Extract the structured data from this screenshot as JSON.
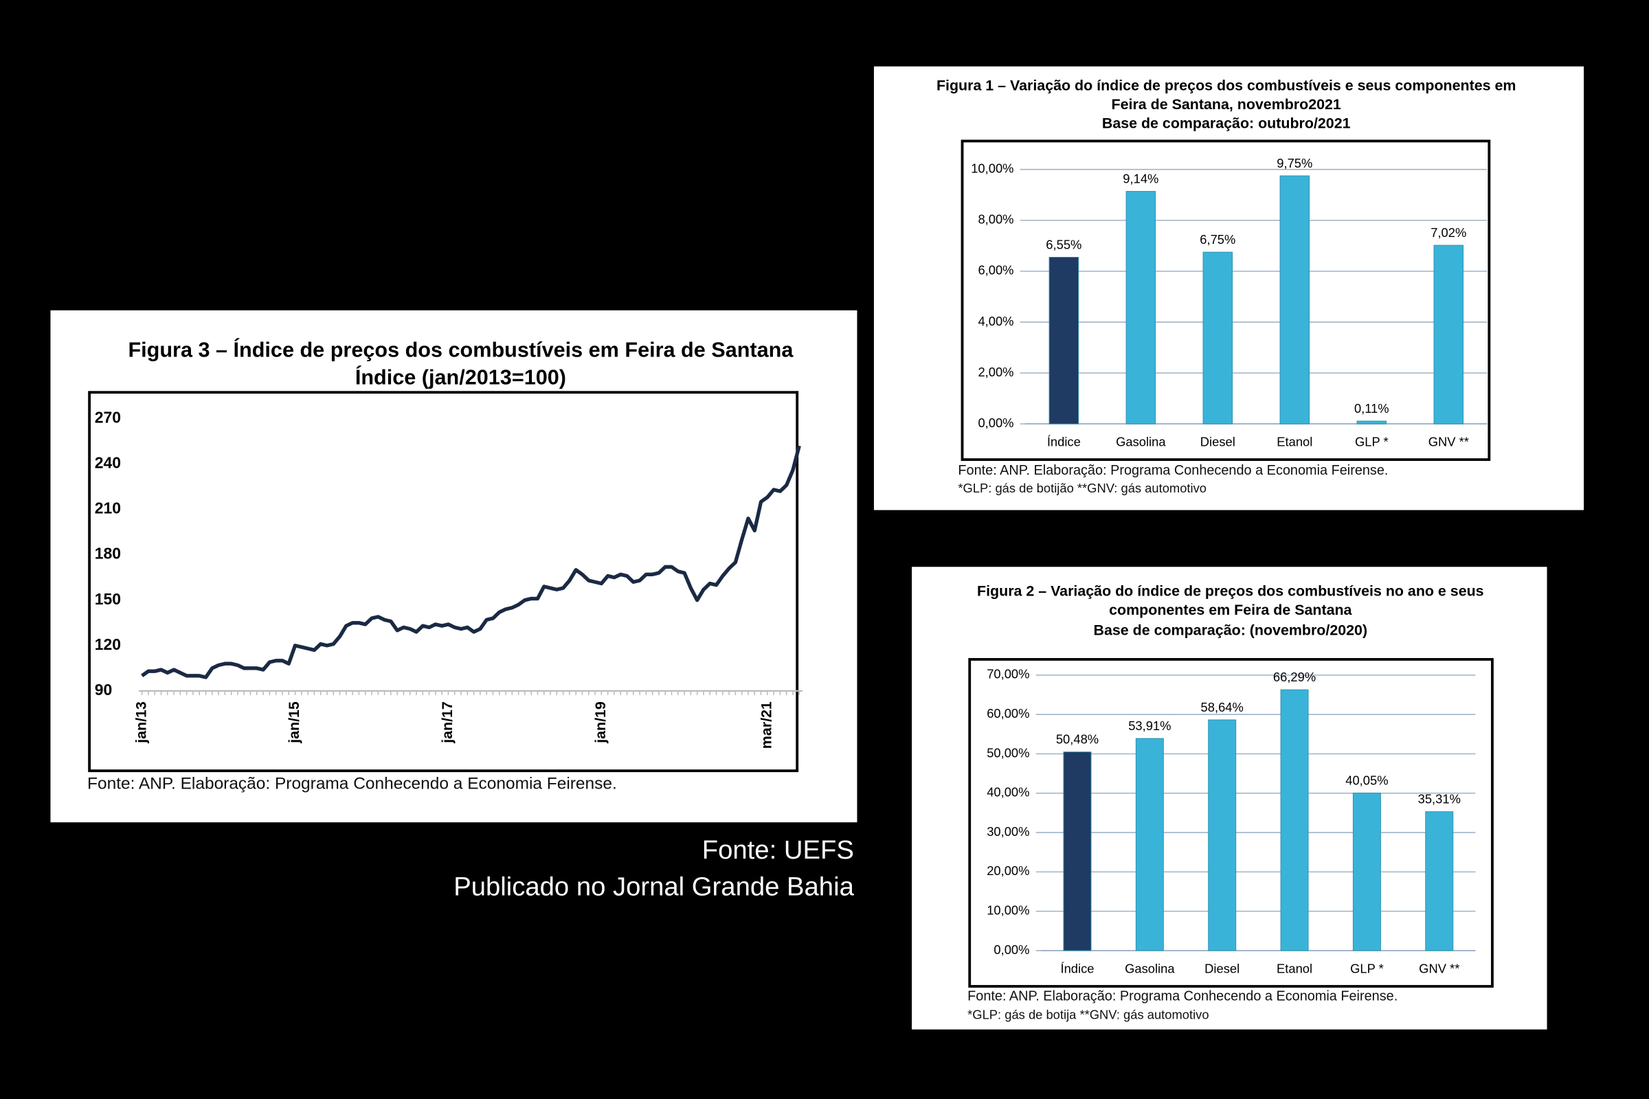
{
  "chart_data": [
    {
      "type": "line",
      "title": [
        "Figura 3 – Índice de preços dos combustíveis em Feira de Santana",
        "Índice (jan/2013=100)"
      ],
      "source": [
        "Fonte: ANP. Elaboração: Programa Conhecendo a Economia Feirense."
      ],
      "categories": [
        "jan/13",
        null,
        null,
        null,
        null,
        null,
        null,
        null,
        null,
        null,
        null,
        null,
        null,
        null,
        null,
        null,
        null,
        null,
        null,
        null,
        null,
        null,
        null,
        null,
        "jan/15",
        null,
        null,
        null,
        null,
        null,
        null,
        null,
        null,
        null,
        null,
        null,
        null,
        null,
        null,
        null,
        null,
        null,
        null,
        null,
        null,
        null,
        null,
        null,
        "jan/17",
        null,
        null,
        null,
        null,
        null,
        null,
        null,
        null,
        null,
        null,
        null,
        null,
        null,
        null,
        null,
        null,
        null,
        null,
        null,
        null,
        null,
        null,
        null,
        "jan/19",
        null,
        null,
        null,
        null,
        null,
        null,
        null,
        null,
        null,
        null,
        null,
        null,
        null,
        null,
        null,
        null,
        null,
        null,
        null,
        null,
        null,
        null,
        null,
        null,
        null,
        "mar/21",
        null,
        null,
        null,
        null,
        null
      ],
      "values": [
        100,
        103,
        103,
        104,
        102,
        104,
        102,
        100,
        100,
        100,
        99,
        105,
        107,
        108,
        108,
        107,
        105,
        105,
        105,
        104,
        109,
        110,
        110,
        108,
        120,
        119,
        118,
        117,
        121,
        120,
        121,
        126,
        133,
        135,
        135,
        134,
        138,
        139,
        137,
        136,
        130,
        132,
        131,
        129,
        133,
        132,
        134,
        133,
        134,
        132,
        131,
        132,
        129,
        131,
        137,
        138,
        142,
        144,
        145,
        147,
        150,
        151,
        151,
        159,
        158,
        157,
        158,
        163,
        170,
        167,
        163,
        162,
        161,
        166,
        165,
        167,
        166,
        162,
        163,
        167,
        167,
        168,
        172,
        172,
        169,
        168,
        158,
        150,
        157,
        161,
        160,
        166,
        171,
        175,
        190,
        204,
        196,
        215,
        218,
        223,
        222,
        226,
        236,
        252
      ],
      "color": "#1b2a44",
      "ylim": [
        90,
        270
      ],
      "yticks": [
        90,
        120,
        150,
        180,
        210,
        240,
        270
      ]
    },
    {
      "type": "bar",
      "title": [
        "Figura 1 – Variação do índice de preços dos combustíveis e seus componentes em",
        "Feira de Santana, novembro2021",
        "Base de comparação: outubro/2021"
      ],
      "source": [
        "Fonte: ANP. Elaboração: Programa Conhecendo a Economia Feirense.",
        "*GLP: gás de botijão **GNV: gás automotivo"
      ],
      "categories": [
        "Índice",
        "Gasolina",
        "Diesel",
        "Etanol",
        "GLP *",
        "GNV **"
      ],
      "values": [
        6.55,
        9.14,
        6.75,
        9.75,
        0.11,
        7.02
      ],
      "value_labels": [
        "6,55%",
        "9,14%",
        "6,75%",
        "9,75%",
        "0,11%",
        "7,02%"
      ],
      "colors": [
        "#1f3a63",
        "#3ab3d8",
        "#3ab3d8",
        "#3ab3d8",
        "#3ab3d8",
        "#3ab3d8"
      ],
      "ylim": [
        0,
        10
      ],
      "yticks": [
        {
          "value": 0,
          "label": "0,00%"
        },
        {
          "value": 2,
          "label": "2,00%"
        },
        {
          "value": 4,
          "label": "4,00%"
        },
        {
          "value": 6,
          "label": "6,00%"
        },
        {
          "value": 8,
          "label": "8,00%"
        },
        {
          "value": 10,
          "label": "10,00%"
        }
      ],
      "grid": true
    },
    {
      "type": "bar",
      "title": [
        "Figura 2 – Variação do índice de preços dos combustíveis no ano e seus",
        "componentes em Feira de Santana",
        "Base de comparação: (novembro/2020)"
      ],
      "source": [
        "Fonte: ANP. Elaboração: Programa Conhecendo a Economia Feirense.",
        "*GLP: gás de botija   **GNV: gás automotivo"
      ],
      "categories": [
        "Índice",
        "Gasolina",
        "Diesel",
        "Etanol",
        "GLP *",
        "GNV **"
      ],
      "values": [
        50.48,
        53.91,
        58.64,
        66.29,
        40.05,
        35.31
      ],
      "value_labels": [
        "50,48%",
        "53,91%",
        "58,64%",
        "66,29%",
        "40,05%",
        "35,31%"
      ],
      "colors": [
        "#1f3a63",
        "#3ab3d8",
        "#3ab3d8",
        "#3ab3d8",
        "#3ab3d8",
        "#3ab3d8"
      ],
      "ylim": [
        0,
        70
      ],
      "yticks": [
        {
          "value": 0,
          "label": "0,00%"
        },
        {
          "value": 10,
          "label": "10,00%"
        },
        {
          "value": 20,
          "label": "20,00%"
        },
        {
          "value": 30,
          "label": "30,00%"
        },
        {
          "value": 40,
          "label": "40,00%"
        },
        {
          "value": 50,
          "label": "50,00%"
        },
        {
          "value": 60,
          "label": "60,00%"
        },
        {
          "value": 70,
          "label": "70,00%"
        }
      ],
      "grid": true
    }
  ],
  "caption": [
    "Fonte: UEFS",
    "Publicado no Jornal Grande Bahia"
  ]
}
